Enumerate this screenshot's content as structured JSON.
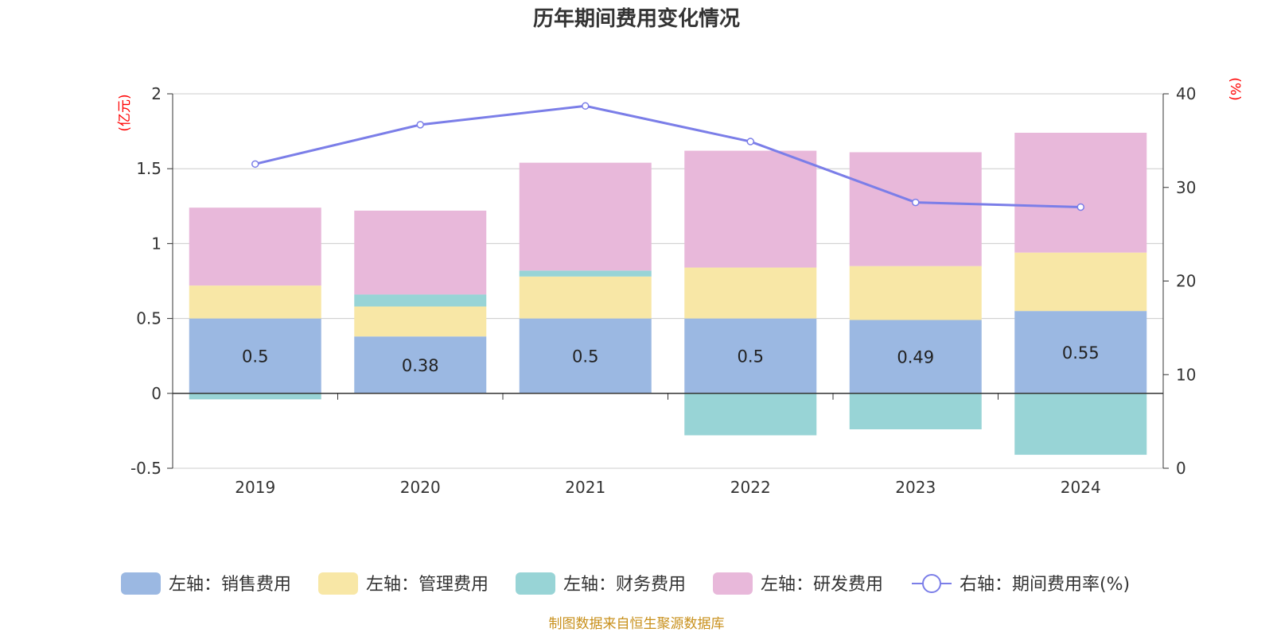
{
  "title": "历年期间费用变化情况",
  "source": "制图数据来自恒生聚源数据库",
  "chart_data": {
    "type": "bar",
    "stacked": true,
    "categories": [
      "2019",
      "2020",
      "2021",
      "2022",
      "2023",
      "2024"
    ],
    "y_left": {
      "unit": "(亿元)",
      "min": -0.5,
      "max": 2,
      "ticks": [
        -0.5,
        0,
        0.5,
        1,
        1.5,
        2
      ],
      "tick_labels": [
        "-0.5",
        "0",
        "0.5",
        "1",
        "1.5",
        "2"
      ]
    },
    "y_right": {
      "unit": "(%)",
      "min": 0,
      "max": 40,
      "ticks": [
        0,
        10,
        20,
        30,
        40
      ],
      "tick_labels": [
        "0",
        "10",
        "20",
        "30",
        "40"
      ]
    },
    "series": [
      {
        "name": "左轴：销售费用",
        "axis": "left",
        "color": "#9bb8e2",
        "values": [
          0.5,
          0.38,
          0.5,
          0.5,
          0.49,
          0.55
        ],
        "labels": [
          "0.5",
          "0.38",
          "0.5",
          "0.5",
          "0.49",
          "0.55"
        ]
      },
      {
        "name": "左轴：管理费用",
        "axis": "left",
        "color": "#f8e7a6",
        "values": [
          0.22,
          0.2,
          0.28,
          0.34,
          0.36,
          0.39
        ]
      },
      {
        "name": "左轴：财务费用",
        "axis": "left",
        "color": "#98d4d6",
        "values": [
          -0.04,
          0.08,
          0.04,
          -0.28,
          -0.24,
          -0.41
        ]
      },
      {
        "name": "左轴：研发费用",
        "axis": "left",
        "color": "#e8b8da",
        "values": [
          0.52,
          0.56,
          0.72,
          0.78,
          0.76,
          0.8
        ]
      },
      {
        "name": "右轴：期间费用率(%)",
        "axis": "right",
        "type": "line",
        "color": "#7b7ee8",
        "values": [
          32.5,
          36.7,
          38.7,
          34.9,
          28.4,
          27.9
        ]
      }
    ],
    "legend_position": "bottom",
    "grid": true
  }
}
